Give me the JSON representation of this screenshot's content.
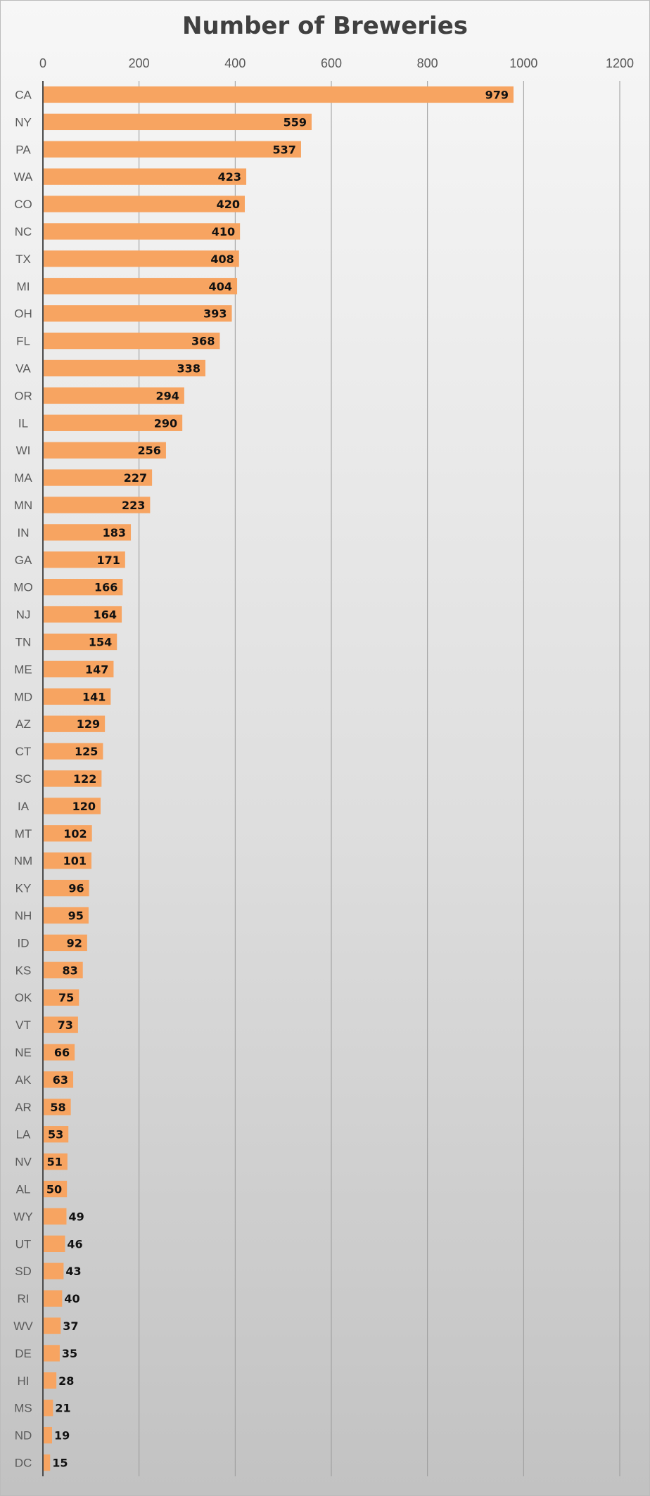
{
  "chart_data": {
    "type": "bar",
    "orientation": "horizontal",
    "title": "Number of Breweries",
    "xlabel": "",
    "ylabel": "",
    "xlim": [
      0,
      1200
    ],
    "x_ticks": [
      0,
      200,
      400,
      600,
      800,
      1000,
      1200
    ],
    "x_axis_position": "top",
    "grid": true,
    "legend": "none",
    "data_labels": true,
    "bar_color": "#F7A461",
    "categories": [
      "CA",
      "NY",
      "PA",
      "WA",
      "CO",
      "NC",
      "TX",
      "MI",
      "OH",
      "FL",
      "VA",
      "OR",
      "IL",
      "WI",
      "MA",
      "MN",
      "IN",
      "GA",
      "MO",
      "NJ",
      "TN",
      "ME",
      "MD",
      "AZ",
      "CT",
      "SC",
      "IA",
      "MT",
      "NM",
      "KY",
      "NH",
      "ID",
      "KS",
      "OK",
      "VT",
      "NE",
      "AK",
      "AR",
      "LA",
      "NV",
      "AL",
      "WY",
      "UT",
      "SD",
      "RI",
      "WV",
      "DE",
      "HI",
      "MS",
      "ND",
      "DC"
    ],
    "values": [
      979,
      559,
      537,
      423,
      420,
      410,
      408,
      404,
      393,
      368,
      338,
      294,
      290,
      256,
      227,
      223,
      183,
      171,
      166,
      164,
      154,
      147,
      141,
      129,
      125,
      122,
      120,
      102,
      101,
      96,
      95,
      92,
      83,
      75,
      73,
      66,
      63,
      58,
      53,
      51,
      50,
      49,
      46,
      43,
      40,
      37,
      35,
      28,
      21,
      19,
      15
    ]
  }
}
